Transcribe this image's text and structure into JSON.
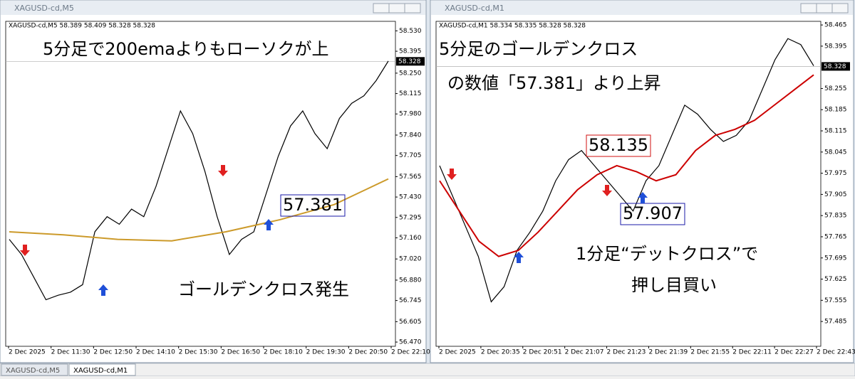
{
  "windows": [
    {
      "title": "XAGUSD-cd,M5",
      "header": "XAGUSD-cd,M5  58.389 58.409 58.328 58.328",
      "chart": {
        "type": "line",
        "ylim": [
          56.442,
          58.593
        ],
        "yticks": [
          {
            "value": 58.53,
            "label": "58.530"
          },
          58.395,
          {
            "value": 58.25,
            "label": "58.250"
          },
          58.115,
          {
            "value": 57.98,
            "label": "57.980"
          },
          {
            "value": 57.84,
            "label": "57.840"
          },
          57.705,
          57.565,
          {
            "value": 57.43,
            "label": "57.430"
          },
          57.295,
          {
            "value": 57.16,
            "label": "57.160"
          },
          {
            "value": 57.02,
            "label": "57.020"
          },
          {
            "value": 56.88,
            "label": "56.880"
          },
          56.745,
          56.605,
          {
            "value": 56.47,
            "label": "56.470"
          }
        ],
        "current_price": 58.328,
        "xlabels": [
          "2 Dec 2025",
          "2 Dec 11:30",
          "2 Dec 12:50",
          "2 Dec 14:10",
          "2 Dec 15:30",
          "2 Dec 16:50",
          "2 Dec 18:10",
          "2 Dec 19:30",
          "2 Dec 20:50",
          "2 Dec 22:10"
        ],
        "series": [
          {
            "color": "#000000",
            "values": [
              57.15,
              57.05,
              56.9,
              56.75,
              56.78,
              56.8,
              56.85,
              57.2,
              57.3,
              57.25,
              57.35,
              57.3,
              57.5,
              57.75,
              58.0,
              57.85,
              57.6,
              57.3,
              57.05,
              57.15,
              57.2,
              57.45,
              57.7,
              57.9,
              58.0,
              57.85,
              57.75,
              57.95,
              58.05,
              58.1,
              58.2,
              58.33
            ]
          },
          {
            "color": "#cc9a2a",
            "values": [
              57.2,
              57.18,
              57.15,
              57.14,
              57.2,
              57.28,
              57.38,
              57.55
            ]
          }
        ]
      },
      "annotations": [
        "5分足で200emaよりもローソクが上",
        "57.381",
        "ゴールデンクロス発生"
      ]
    },
    {
      "title": "XAGUSD-cd,M1",
      "header": "XAGUSD-cd,M1  58.334 58.335 58.328 58.328",
      "chart": {
        "type": "line",
        "ylim": [
          57.403,
          58.477
        ],
        "yticks": [
          58.465,
          58.395,
          58.255,
          58.185,
          58.115,
          58.045,
          57.975,
          57.905,
          57.835,
          57.765,
          57.695,
          57.625,
          57.555,
          57.485
        ],
        "current_price": 58.328,
        "xlabels": [
          "2 Dec 2025",
          "2 Dec 20:35",
          "2 Dec 20:51",
          "2 Dec 21:07",
          "2 Dec 21:23",
          "2 Dec 21:39",
          "2 Dec 21:55",
          "2 Dec 22:11",
          "2 Dec 22:27",
          "2 Dec 22:43"
        ],
        "series": [
          {
            "color": "#000000",
            "values": [
              58.0,
              57.9,
              57.8,
              57.7,
              57.55,
              57.6,
              57.72,
              57.78,
              57.85,
              57.95,
              58.02,
              58.05,
              58.0,
              57.95,
              57.9,
              57.85,
              57.95,
              58.0,
              58.1,
              58.2,
              58.17,
              58.12,
              58.08,
              58.1,
              58.15,
              58.25,
              58.35,
              58.42,
              58.4,
              58.33
            ]
          },
          {
            "color": "#cc0000",
            "values": [
              57.95,
              57.85,
              57.75,
              57.7,
              57.72,
              57.78,
              57.85,
              57.92,
              57.97,
              58.0,
              57.98,
              57.95,
              57.97,
              58.05,
              58.1,
              58.12,
              58.15,
              58.2,
              58.25,
              58.3
            ]
          }
        ]
      },
      "annotations": [
        "5分足のゴールデンクロス",
        "の数値「57.381」より上昇",
        "58.135",
        "57.907",
        "1分足“デットクロス”で",
        "押し目買い"
      ]
    }
  ],
  "tabs": [
    "XAGUSD-cd,M5",
    "XAGUSD-cd,M1"
  ]
}
